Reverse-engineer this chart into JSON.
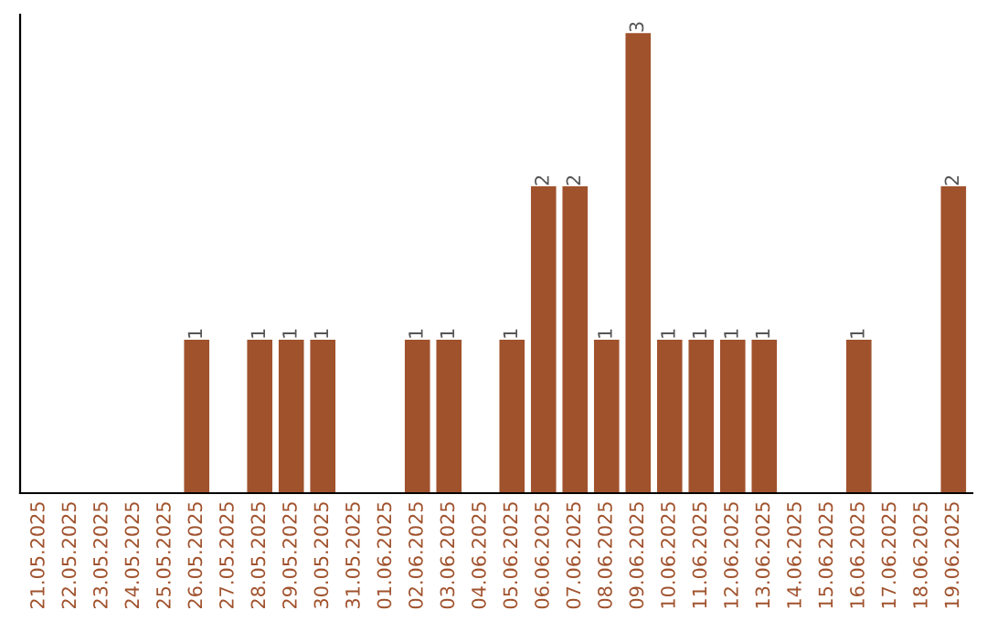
{
  "chart_data": {
    "type": "bar",
    "categories": [
      "21.05.2025",
      "22.05.2025",
      "23.05.2025",
      "24.05.2025",
      "25.05.2025",
      "26.05.2025",
      "27.05.2025",
      "28.05.2025",
      "29.05.2025",
      "30.05.2025",
      "31.05.2025",
      "01.06.2025",
      "02.06.2025",
      "03.06.2025",
      "04.06.2025",
      "05.06.2025",
      "06.06.2025",
      "07.06.2025",
      "08.06.2025",
      "09.06.2025",
      "10.06.2025",
      "11.06.2025",
      "12.06.2025",
      "13.06.2025",
      "14.06.2025",
      "15.06.2025",
      "16.06.2025",
      "17.06.2025",
      "18.06.2025",
      "19.06.2025"
    ],
    "values": [
      0,
      0,
      0,
      0,
      0,
      1,
      0,
      1,
      1,
      1,
      0,
      0,
      1,
      1,
      0,
      1,
      2,
      2,
      1,
      3,
      1,
      1,
      1,
      1,
      0,
      0,
      1,
      0,
      0,
      2
    ],
    "value_labels": [
      null,
      null,
      null,
      null,
      null,
      "1",
      null,
      "1",
      "1",
      "1",
      null,
      null,
      "1",
      "1",
      null,
      "1",
      "2",
      "2",
      "1",
      "3",
      "1",
      "1",
      "1",
      "1",
      null,
      null,
      "1",
      null,
      null,
      "2"
    ],
    "color": "#a0522d",
    "tick_labels": "x",
    "grid": false,
    "legend": false
  }
}
